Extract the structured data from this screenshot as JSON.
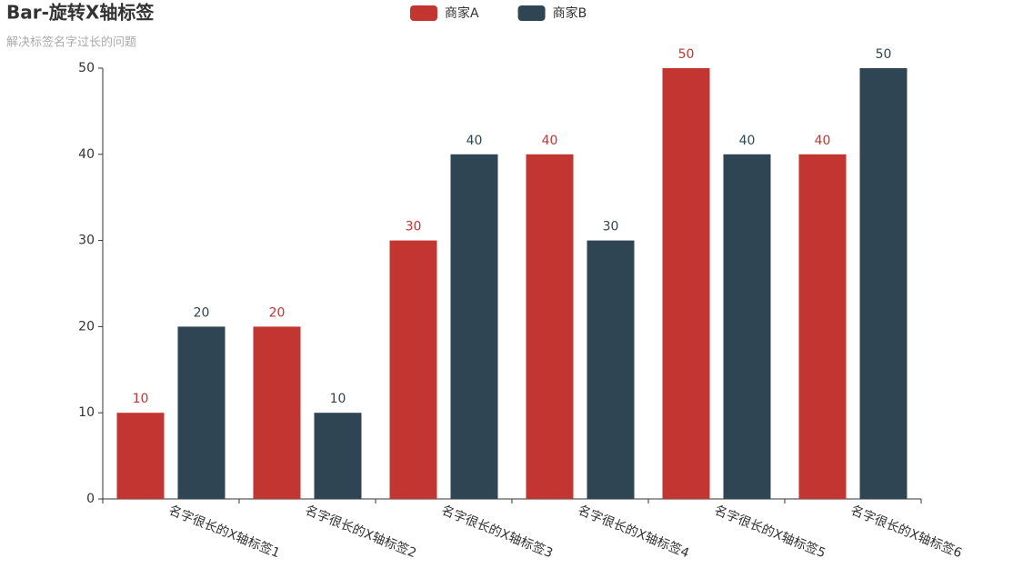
{
  "chart_data": {
    "type": "bar",
    "title": "Bar-旋转X轴标签",
    "subtitle": "解决标签名字过长的问题",
    "categories": [
      "名字很长的X轴标签1",
      "名字很长的X轴标签2",
      "名字很长的X轴标签3",
      "名字很长的X轴标签4",
      "名字很长的X轴标签5",
      "名字很长的X轴标签6"
    ],
    "series": [
      {
        "name": "商家A",
        "color": "#c23531",
        "values": [
          10,
          20,
          30,
          40,
          50,
          40
        ]
      },
      {
        "name": "商家B",
        "color": "#2f4554",
        "values": [
          20,
          10,
          40,
          30,
          40,
          50
        ]
      }
    ],
    "ylim": [
      0,
      50
    ],
    "yticks": [
      0,
      10,
      20,
      30,
      40,
      50
    ],
    "legend": "top"
  }
}
